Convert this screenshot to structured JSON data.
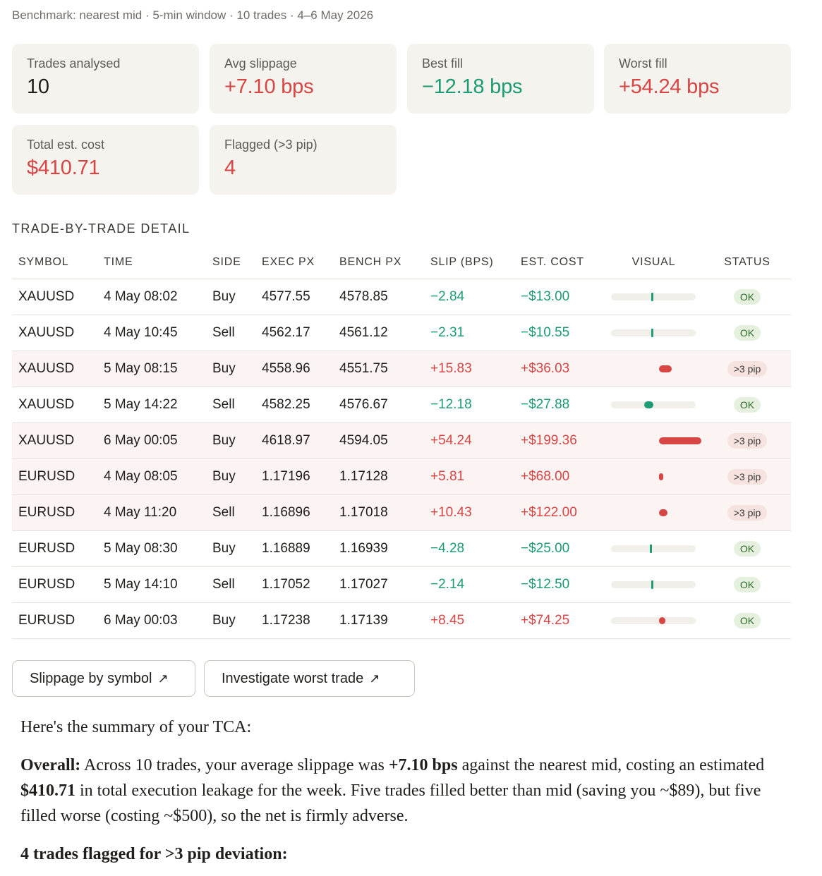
{
  "subtitle": "Benchmark: nearest mid · 5-min window · 10 trades · 4–6 May 2026",
  "stats": [
    {
      "label": "Trades analysed",
      "value": "10",
      "tone": "dark"
    },
    {
      "label": "Avg slippage",
      "value": "+7.10 bps",
      "tone": "red"
    },
    {
      "label": "Best fill",
      "value": "−12.18 bps",
      "tone": "green"
    },
    {
      "label": "Worst fill",
      "value": "+54.24 bps",
      "tone": "red"
    },
    {
      "label": "Total est. cost",
      "value": "$410.71",
      "tone": "red"
    },
    {
      "label": "Flagged (>3 pip)",
      "value": "4",
      "tone": "red"
    }
  ],
  "section_title": "TRADE-BY-TRADE DETAIL",
  "table": {
    "headers": [
      "SYMBOL",
      "TIME",
      "SIDE",
      "EXEC PX",
      "BENCH PX",
      "SLIP (BPS)",
      "EST. COST",
      "VISUAL",
      "STATUS"
    ],
    "rows": [
      {
        "symbol": "XAUUSD",
        "time": "4 May 08:02",
        "side": "Buy",
        "exec": "4577.55",
        "bench": "4578.85",
        "slip": "−2.84",
        "slip_num": -2.84,
        "cost": "−$13.00",
        "status": "OK",
        "flagged": false
      },
      {
        "symbol": "XAUUSD",
        "time": "4 May 10:45",
        "side": "Sell",
        "exec": "4562.17",
        "bench": "4561.12",
        "slip": "−2.31",
        "slip_num": -2.31,
        "cost": "−$10.55",
        "status": "OK",
        "flagged": false
      },
      {
        "symbol": "XAUUSD",
        "time": "5 May 08:15",
        "side": "Buy",
        "exec": "4558.96",
        "bench": "4551.75",
        "slip": "+15.83",
        "slip_num": 15.83,
        "cost": "+$36.03",
        "status": ">3 pip",
        "flagged": true
      },
      {
        "symbol": "XAUUSD",
        "time": "5 May 14:22",
        "side": "Sell",
        "exec": "4582.25",
        "bench": "4576.67",
        "slip": "−12.18",
        "slip_num": -12.18,
        "cost": "−$27.88",
        "status": "OK",
        "flagged": false
      },
      {
        "symbol": "XAUUSD",
        "time": "6 May 00:05",
        "side": "Buy",
        "exec": "4618.97",
        "bench": "4594.05",
        "slip": "+54.24",
        "slip_num": 54.24,
        "cost": "+$199.36",
        "status": ">3 pip",
        "flagged": true
      },
      {
        "symbol": "EURUSD",
        "time": "4 May 08:05",
        "side": "Buy",
        "exec": "1.17196",
        "bench": "1.17128",
        "slip": "+5.81",
        "slip_num": 5.81,
        "cost": "+$68.00",
        "status": ">3 pip",
        "flagged": true
      },
      {
        "symbol": "EURUSD",
        "time": "4 May 11:20",
        "side": "Sell",
        "exec": "1.16896",
        "bench": "1.17018",
        "slip": "+10.43",
        "slip_num": 10.43,
        "cost": "+$122.00",
        "status": ">3 pip",
        "flagged": true
      },
      {
        "symbol": "EURUSD",
        "time": "5 May 08:30",
        "side": "Buy",
        "exec": "1.16889",
        "bench": "1.16939",
        "slip": "−4.28",
        "slip_num": -4.28,
        "cost": "−$25.00",
        "status": "OK",
        "flagged": false
      },
      {
        "symbol": "EURUSD",
        "time": "5 May 14:10",
        "side": "Sell",
        "exec": "1.17052",
        "bench": "1.17027",
        "slip": "−2.14",
        "slip_num": -2.14,
        "cost": "−$12.50",
        "status": "OK",
        "flagged": false
      },
      {
        "symbol": "EURUSD",
        "time": "6 May 00:03",
        "side": "Buy",
        "exec": "1.17238",
        "bench": "1.17139",
        "slip": "+8.45",
        "slip_num": 8.45,
        "cost": "+$74.25",
        "status": "OK",
        "flagged": false
      }
    ]
  },
  "buttons": {
    "slippage_by_symbol": "Slippage by symbol",
    "investigate_worst": "Investigate worst trade",
    "arrow_icon": "arrow-up-right-icon"
  },
  "summary": {
    "intro": "Here's the summary of your TCA:",
    "overall_label": "Overall:",
    "overall_text_1": " Across 10 trades, your average slippage was ",
    "overall_bold_1": "+7.10 bps",
    "overall_text_2": " against the nearest mid, costing an estimated ",
    "overall_bold_2": "$410.71",
    "overall_text_3": " in total execution leakage for the week. Five trades filled better than mid (saving you ~$89), but five filled worse (costing ~$500), so the net is firmly adverse.",
    "flagged_heading": "4 trades flagged for >3 pip deviation:"
  },
  "colors": {
    "red": "#d84545",
    "green": "#1d9b74",
    "card_bg": "#f4f3ee",
    "flag_row_bg": "#fbf4f3",
    "ok_badge_bg": "#e5f0de",
    "flag_badge_bg": "#f6e2df"
  }
}
